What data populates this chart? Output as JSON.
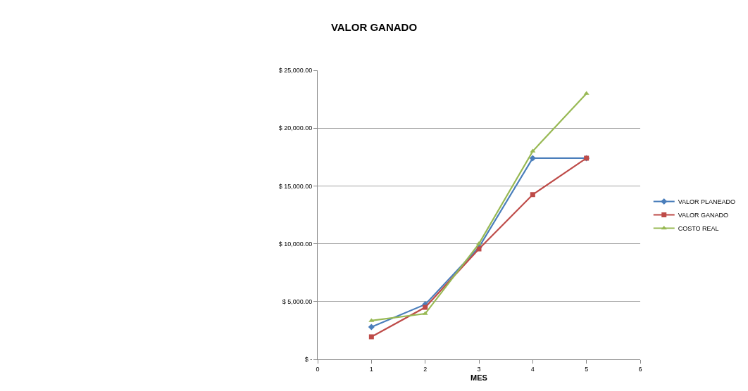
{
  "chart_data": {
    "type": "line",
    "title": "VALOR GANADO",
    "xlabel": "MES",
    "x": [
      1,
      2,
      3,
      4,
      5
    ],
    "series": [
      {
        "name": "VALOR PLANEADO",
        "color": "#4a7ebb",
        "values": [
          2800,
          4750,
          9700,
          17400,
          17400
        ],
        "marker": "diamond"
      },
      {
        "name": "VALOR GANADO",
        "color": "#be4b48",
        "values": [
          1950,
          4500,
          9550,
          14250,
          17400
        ],
        "marker": "square"
      },
      {
        "name": "COSTO REAL",
        "color": "#98b954",
        "values": [
          3350,
          3950,
          10000,
          18000,
          23000
        ],
        "marker": "triangle"
      }
    ],
    "xlim": [
      0,
      6
    ],
    "xticks": [
      0,
      1,
      2,
      3,
      4,
      5,
      6
    ],
    "ylim": [
      0,
      25000
    ],
    "yticks": [
      {
        "value": 0,
        "label": "$ -"
      },
      {
        "value": 5000,
        "label": "$ 5,000.00"
      },
      {
        "value": 10000,
        "label": "$ 10,000.00"
      },
      {
        "value": 15000,
        "label": "$ 15,000.00"
      },
      {
        "value": 20000,
        "label": "$ 20,000.00"
      },
      {
        "value": 25000,
        "label": "$ 25,000.00"
      }
    ],
    "grid": "y",
    "legend": "right",
    "line_style": "solid"
  }
}
